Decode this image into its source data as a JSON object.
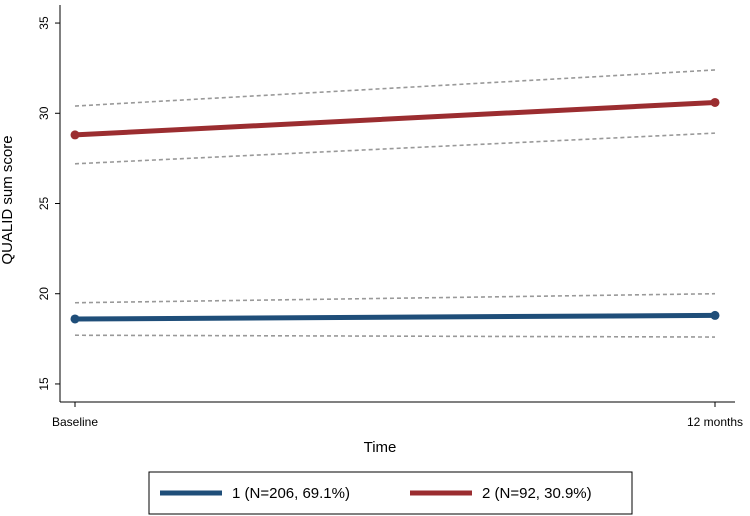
{
  "chart_data": {
    "type": "line",
    "xlabel": "Time",
    "ylabel": "QUALID sum score",
    "categories": [
      "Baseline",
      "12 months"
    ],
    "x": [
      0,
      12
    ],
    "ylim": [
      14,
      36
    ],
    "yticks": [
      15,
      20,
      25,
      30,
      35
    ],
    "grid": false,
    "legend_position": "bottom",
    "series": [
      {
        "name": "1 (N=206, 69.1%)",
        "color": "#1f4e79",
        "values": [
          18.6,
          18.8
        ],
        "ci_lower": [
          17.7,
          17.6
        ],
        "ci_upper": [
          19.5,
          20.0
        ]
      },
      {
        "name": "2 (N=92, 30.9%)",
        "color": "#9b2d30",
        "values": [
          28.8,
          30.6
        ],
        "ci_lower": [
          27.2,
          28.9
        ],
        "ci_upper": [
          30.4,
          32.4
        ]
      }
    ],
    "ci_color": "#999999"
  }
}
